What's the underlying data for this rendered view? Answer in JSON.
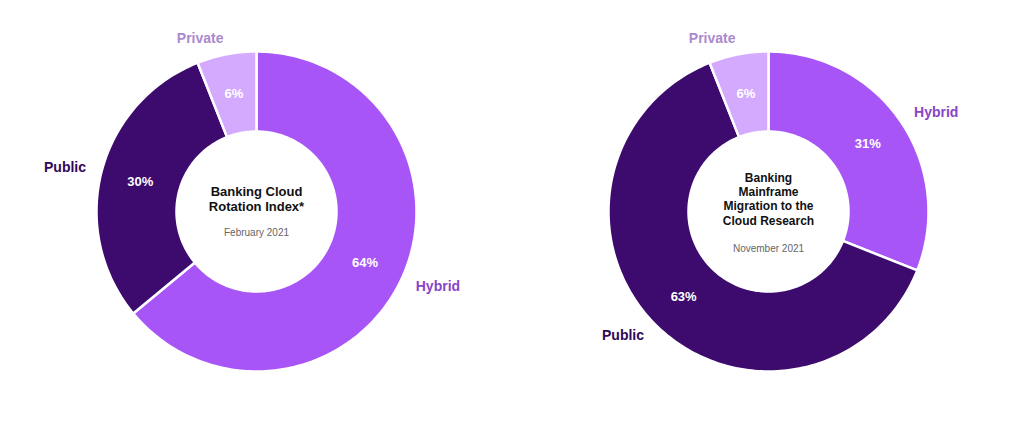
{
  "chart_data": [
    {
      "type": "donut",
      "title": "Banking Cloud\nRotation Index*",
      "subtitle": "February 2021",
      "categories": [
        "Hybrid",
        "Public",
        "Private"
      ],
      "values": [
        64,
        30,
        6
      ],
      "value_labels": [
        "64%",
        "30%",
        "6%"
      ],
      "colors": [
        "#a855f7",
        "#3d0a6e",
        "#d4aaff"
      ],
      "data_labels": true
    },
    {
      "type": "donut",
      "title": "Banking\nMainframe\nMigration to the\nCloud Research",
      "subtitle": "November 2021",
      "categories": [
        "Hybrid",
        "Public",
        "Private"
      ],
      "values": [
        31,
        63,
        6
      ],
      "value_labels": [
        "31%",
        "63%",
        "6%"
      ],
      "colors": [
        "#a855f7",
        "#3d0a6e",
        "#d4aaff"
      ],
      "data_labels": true
    }
  ]
}
